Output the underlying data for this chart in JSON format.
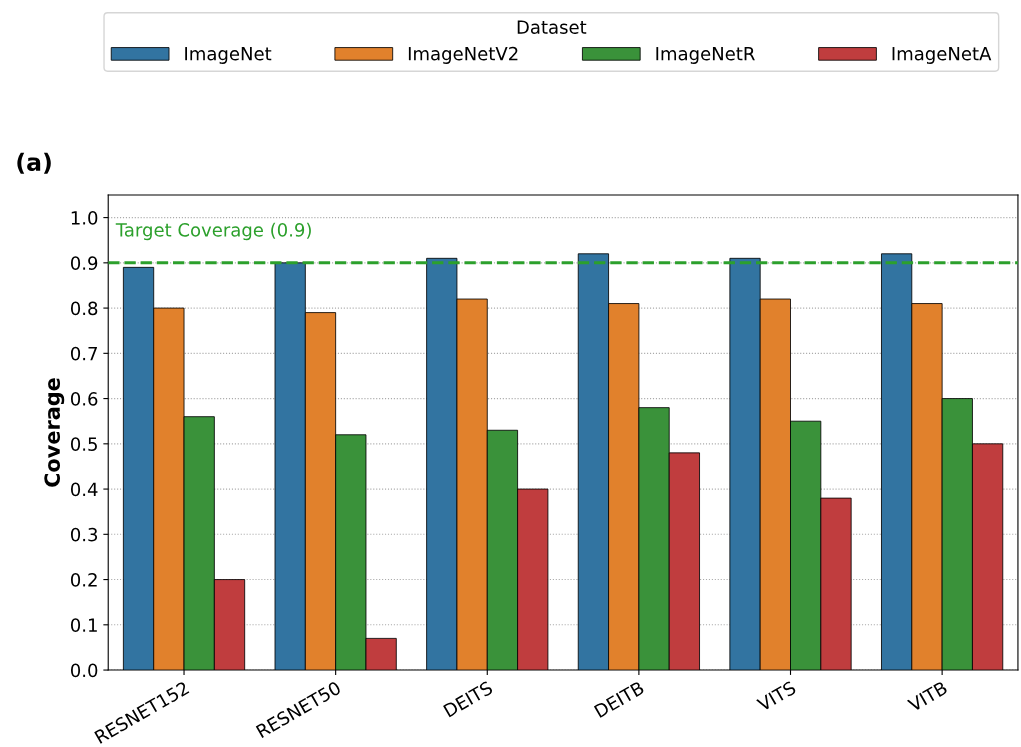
{
  "chart_data": {
    "type": "bar",
    "title": "(a)",
    "ylabel": "Coverage",
    "legend_title": "Dataset",
    "categories": [
      "RESNET152",
      "RESNET50",
      "DEITS",
      "DEITB",
      "VITS",
      "VITB"
    ],
    "series": [
      {
        "name": "ImageNet",
        "color": "#3274a1",
        "values": [
          0.89,
          0.9,
          0.91,
          0.92,
          0.91,
          0.92
        ]
      },
      {
        "name": "ImageNetV2",
        "color": "#e1812c",
        "values": [
          0.8,
          0.79,
          0.82,
          0.81,
          0.82,
          0.81
        ]
      },
      {
        "name": "ImageNetR",
        "color": "#3a923a",
        "values": [
          0.56,
          0.52,
          0.53,
          0.58,
          0.55,
          0.6
        ]
      },
      {
        "name": "ImageNetA",
        "color": "#c03d3e",
        "values": [
          0.2,
          0.07,
          0.4,
          0.48,
          0.38,
          0.5
        ]
      }
    ],
    "ylim": [
      0,
      1.05
    ],
    "yticks": [
      {
        "value": 0,
        "label": "0.0"
      },
      0.1,
      0.2,
      0.3,
      0.4,
      0.5,
      0.6,
      0.7,
      0.8,
      0.9,
      {
        "value": 1,
        "label": "1.0"
      }
    ],
    "ref_lines": [
      {
        "axis": "y",
        "value": 0.9,
        "label": "Target Coverage (0.9)",
        "color": "#2ca02c",
        "line_style": "dashed"
      }
    ],
    "grid": "y",
    "legend": "top"
  }
}
